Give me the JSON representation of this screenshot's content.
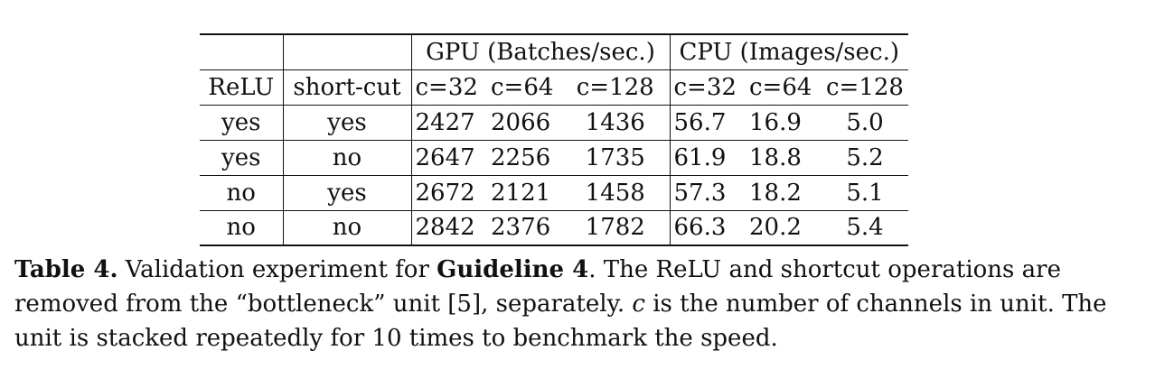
{
  "table": {
    "group_headers": {
      "gpu": "GPU (Batches/sec.)",
      "cpu": "CPU (Images/sec.)"
    },
    "columns": [
      "ReLU",
      "short-cut",
      "c=32",
      "c=64",
      "c=128",
      "c=32",
      "c=64",
      "c=128"
    ],
    "rows": [
      [
        "yes",
        "yes",
        "2427",
        "2066",
        "1436",
        "56.7",
        "16.9",
        "5.0"
      ],
      [
        "yes",
        "no",
        "2647",
        "2256",
        "1735",
        "61.9",
        "18.8",
        "5.2"
      ],
      [
        "no",
        "yes",
        "2672",
        "2121",
        "1458",
        "57.3",
        "18.2",
        "5.1"
      ],
      [
        "no",
        "no",
        "2842",
        "2376",
        "1782",
        "66.3",
        "20.2",
        "5.4"
      ]
    ]
  },
  "caption": {
    "label": "Table 4.",
    "text_1": " Validation experiment for ",
    "bold_term": "Guideline 4",
    "text_2": ". The ReLU and shortcut operations are removed from the “bottleneck” unit [5], separately. ",
    "italic_var": "c",
    "text_3": " is the number of channels in unit. The unit is stacked repeatedly for 10 times to benchmark the speed."
  }
}
